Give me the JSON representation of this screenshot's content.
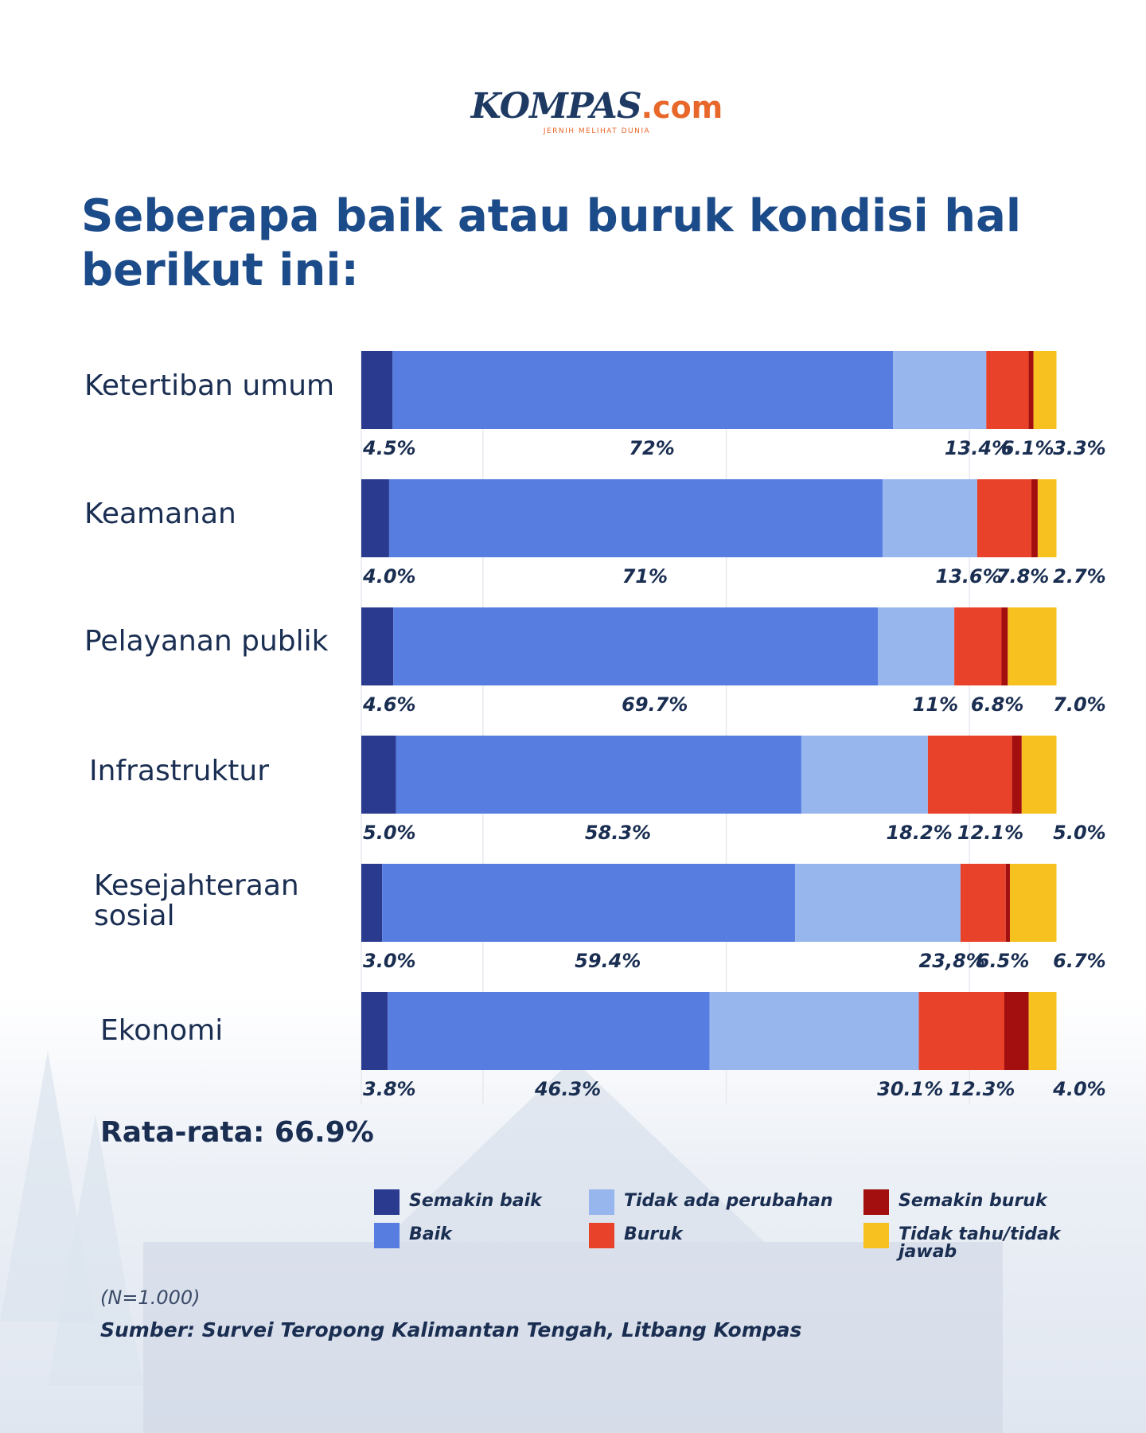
{
  "brand": {
    "name": "KOMPAS",
    "suffix": ".com",
    "tagline": "JERNIH MELIHAT DUNIA"
  },
  "title_line1": "Seberapa baik atau buruk kondisi hal",
  "title_line2": "berikut ini:",
  "average": "Rata-rata: 66.9%",
  "note": "(N=1.000)",
  "source": "Sumber: Survei Teropong Kalimantan Tengah, Litbang Kompas",
  "colors": {
    "semakin_baik": "#2a3a8f",
    "baik": "#567ddf",
    "tidak_ada_perubahan": "#97b6ee",
    "buruk": "#e8432a",
    "semakin_buruk": "#a30f0f",
    "tidak_tahu": "#f7c21f"
  },
  "legend": [
    {
      "label": "Semakin baik",
      "color": "#2a3a8f"
    },
    {
      "label": "Baik",
      "color": "#567ddf"
    },
    {
      "label": "Tidak ada perubahan",
      "color": "#97b6ee"
    },
    {
      "label": "Buruk",
      "color": "#e8432a"
    },
    {
      "label": "Semakin buruk",
      "color": "#a30f0f"
    },
    {
      "label": "Tidak tahu/tidak jawab",
      "color": "#f7c21f"
    }
  ],
  "chart_data": {
    "type": "bar",
    "orientation": "horizontal-stacked",
    "categories": [
      "Ketertiban umum",
      "Keamanan",
      "Pelayanan publik",
      "Infrastruktur",
      "Kesejahteraan sosial",
      "Ekonomi"
    ],
    "series": [
      {
        "name": "Semakin baik",
        "values": [
          4.5,
          4.0,
          4.6,
          5.0,
          3.0,
          3.8
        ],
        "labels": [
          "4.5%",
          "4.0%",
          "4.6%",
          "5.0%",
          "3.0%",
          "3.8%"
        ]
      },
      {
        "name": "Baik",
        "values": [
          72,
          71,
          69.7,
          58.3,
          59.4,
          46.3
        ],
        "labels": [
          "72%",
          "71%",
          "69.7%",
          "58.3%",
          "59.4%",
          "46.3%"
        ]
      },
      {
        "name": "Tidak ada perubahan",
        "values": [
          13.4,
          13.6,
          11,
          18.2,
          23.8,
          30.1
        ],
        "labels": [
          "13.4%",
          "13.6%",
          "11%",
          "18.2%",
          "23,8%",
          "30.1%"
        ]
      },
      {
        "name": "Buruk",
        "values": [
          6.1,
          7.8,
          6.8,
          12.1,
          6.5,
          12.3
        ],
        "labels": [
          "6.1%",
          "7.8%",
          "6.8%",
          "12.1%",
          "6.5%",
          "12.3%"
        ]
      },
      {
        "name": "Semakin buruk",
        "values": [
          0.7,
          0.9,
          0.9,
          1.4,
          0.6,
          3.5
        ],
        "labels": [
          "",
          "",
          "",
          "",
          "",
          ""
        ]
      },
      {
        "name": "Tidak tahu/tidak jawab",
        "values": [
          3.3,
          2.7,
          7.0,
          5.0,
          6.7,
          4.0
        ],
        "labels": [
          "3.3%",
          "2.7%",
          "7.0%",
          "5.0%",
          "6.7%",
          "4.0%"
        ]
      }
    ],
    "xlim": [
      0,
      100
    ],
    "grid": true,
    "legend_position": "bottom"
  }
}
